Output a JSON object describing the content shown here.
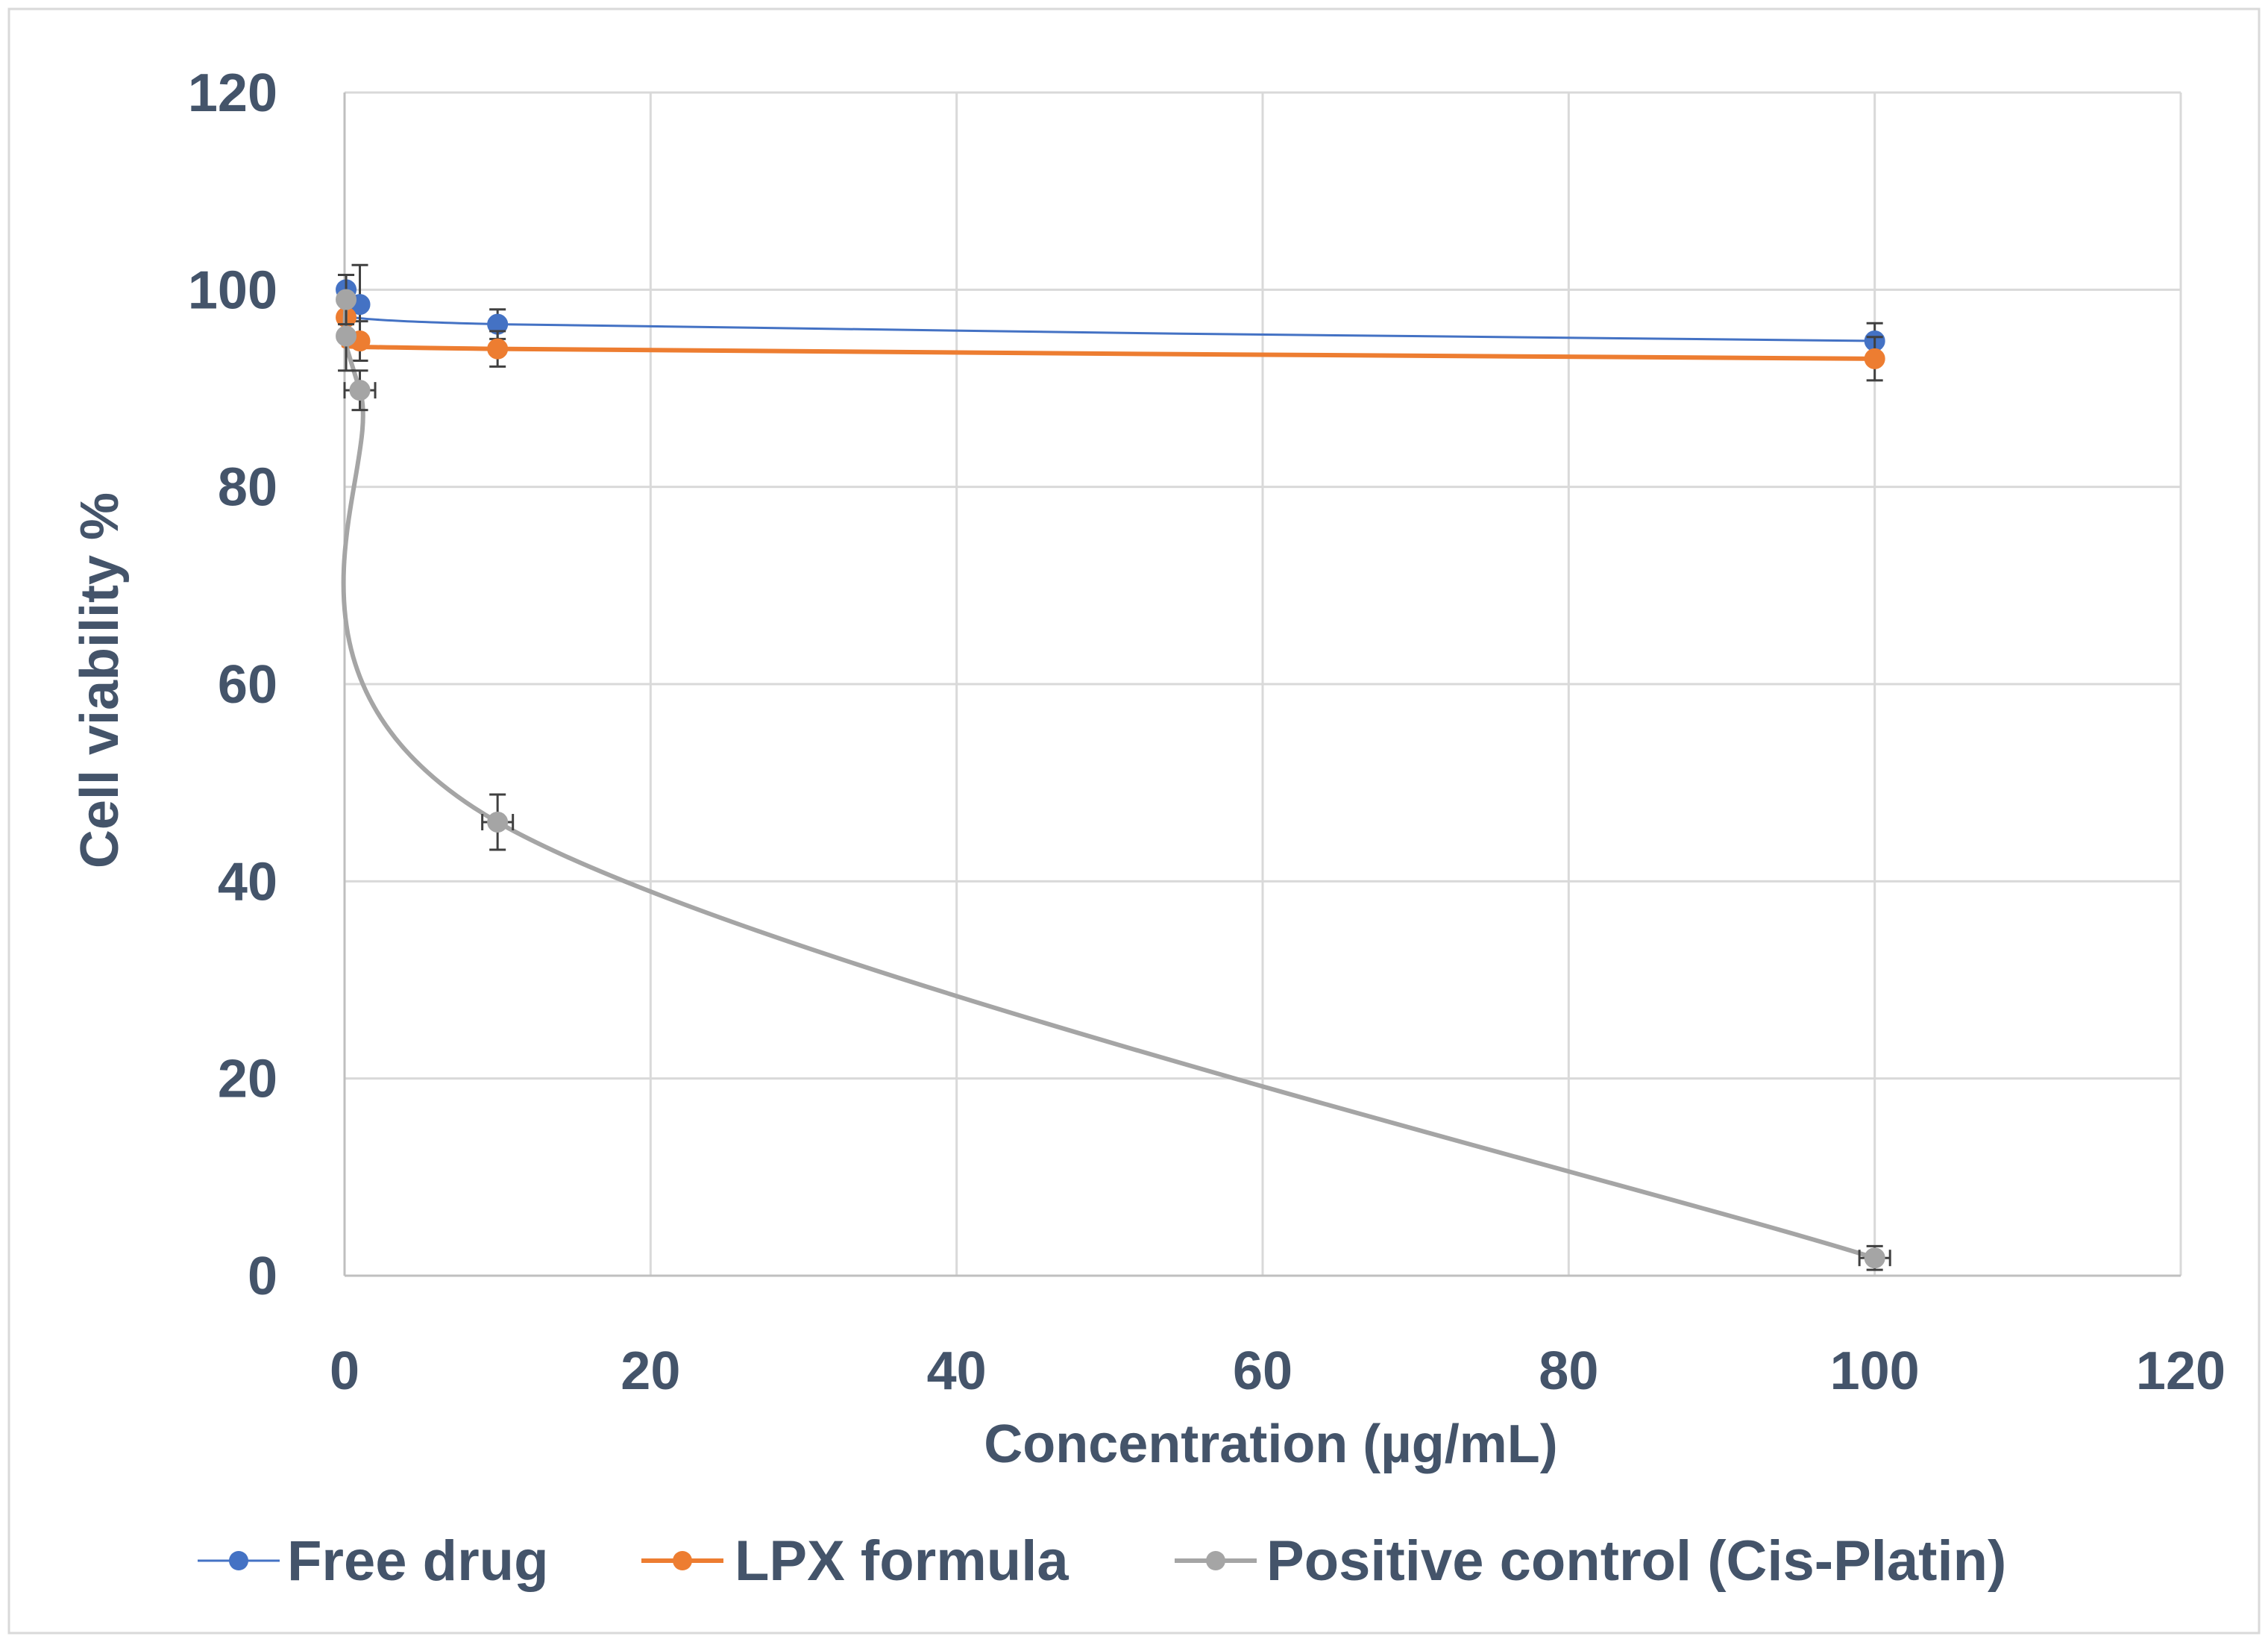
{
  "chart_data": {
    "type": "scatter",
    "title": "",
    "xlabel": "Concentration  (µg/mL)",
    "ylabel": "Cell viability %",
    "xlim": [
      0,
      120
    ],
    "ylim": [
      0,
      120
    ],
    "x_ticks": [
      "0",
      "20",
      "40",
      "60",
      "80",
      "100",
      "120"
    ],
    "y_ticks": [
      "0",
      "20",
      "40",
      "60",
      "80",
      "100",
      "120"
    ],
    "grid": true,
    "legend_position": "bottom",
    "series": [
      {
        "name": "Free drug",
        "color": "#4472C4",
        "x": [
          0.1,
          1,
          10,
          100
        ],
        "y": [
          100,
          98.5,
          96.5,
          94.8
        ],
        "y_err": [
          1.5,
          4,
          1.5,
          1.8
        ],
        "x_err": [
          0,
          0,
          0,
          0
        ]
      },
      {
        "name": "LPX formula",
        "color": "#ED7D31",
        "x": [
          0.1,
          1,
          10,
          100
        ],
        "y": [
          97.2,
          94.8,
          94,
          93
        ],
        "y_err": [
          1.5,
          2,
          1.8,
          2.2
        ],
        "x_err": [
          0,
          0,
          0,
          0
        ]
      },
      {
        "name": "Positive control (Cis-Platin)",
        "color": "#A5A5A5",
        "x": [
          0.1,
          0.1,
          1,
          10,
          100
        ],
        "y": [
          99,
          95.3,
          89.8,
          46,
          1.8
        ],
        "y_err": [
          2.5,
          3.5,
          2,
          2.8,
          1.2
        ],
        "x_err": [
          0,
          0,
          1,
          1,
          1
        ]
      }
    ]
  }
}
